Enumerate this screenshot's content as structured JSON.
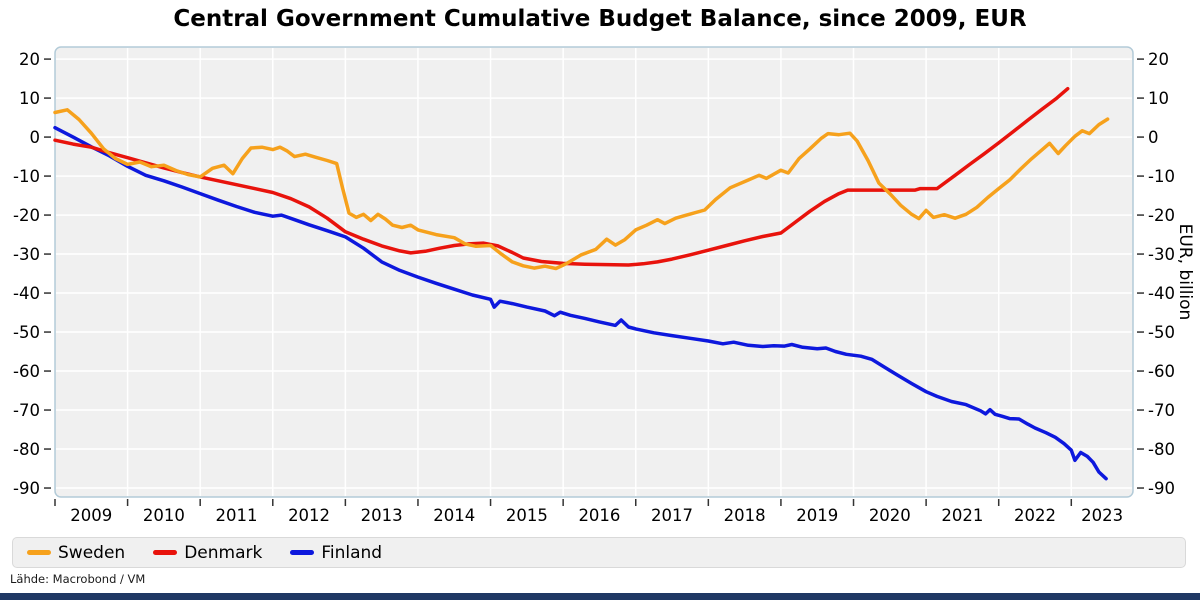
{
  "title": "Central Government Cumulative Budget Balance, since 2009, EUR",
  "source_note": "Lähde: Macrobond / VM",
  "colors": {
    "plot_bg": "#f0f0f0",
    "grid": "#ffffff",
    "frame": "#b3cbd8",
    "tick": "#333333",
    "text": "#000000",
    "legend_bg": "#f0f0f0",
    "legend_border": "#d9d9d9",
    "footer_bar": "#1f3864",
    "sweden": "#f6a11c",
    "denmark": "#e8130c",
    "finland": "#0d18dd"
  },
  "legend": {
    "items": [
      {
        "label": "Sweden",
        "color": "#f6a11c"
      },
      {
        "label": "Denmark",
        "color": "#e8130c"
      },
      {
        "label": "Finland",
        "color": "#0d18dd"
      }
    ]
  },
  "chart_data": {
    "type": "line",
    "title": "Central Government Cumulative Budget Balance, since 2009, EUR",
    "xlabel": "",
    "ylabel_right": "EUR, billion",
    "grid": true,
    "legend_position": "bottom",
    "x_range": [
      2009.0,
      2023.85
    ],
    "y_range": [
      -92.3,
      23.1
    ],
    "y_ticks": [
      20,
      10,
      0,
      -10,
      -20,
      -30,
      -40,
      -50,
      -60,
      -70,
      -80,
      -90
    ],
    "x_ticks": [
      2009,
      2010,
      2011,
      2012,
      2013,
      2014,
      2015,
      2016,
      2017,
      2018,
      2019,
      2020,
      2021,
      2022,
      2023
    ],
    "x_tick_labels": [
      "2009",
      "2010",
      "2011",
      "2012",
      "2013",
      "2014",
      "2015",
      "2016",
      "2017",
      "2018",
      "2019",
      "2020",
      "2021",
      "2022",
      "2023"
    ],
    "series": [
      {
        "name": "Sweden",
        "color": "#f6a11c",
        "points": [
          [
            2009.0,
            6.3
          ],
          [
            2009.17,
            7.0
          ],
          [
            2009.33,
            4.5
          ],
          [
            2009.5,
            1.0
          ],
          [
            2009.67,
            -3.0
          ],
          [
            2009.83,
            -5.5
          ],
          [
            2010.0,
            -7.0
          ],
          [
            2010.17,
            -6.4
          ],
          [
            2010.33,
            -7.6
          ],
          [
            2010.5,
            -7.2
          ],
          [
            2010.67,
            -8.6
          ],
          [
            2010.83,
            -9.6
          ],
          [
            2011.0,
            -10.2
          ],
          [
            2011.17,
            -8.0
          ],
          [
            2011.33,
            -7.2
          ],
          [
            2011.45,
            -9.4
          ],
          [
            2011.58,
            -5.5
          ],
          [
            2011.7,
            -2.8
          ],
          [
            2011.85,
            -2.6
          ],
          [
            2012.0,
            -3.2
          ],
          [
            2012.1,
            -2.6
          ],
          [
            2012.2,
            -3.6
          ],
          [
            2012.3,
            -5.0
          ],
          [
            2012.45,
            -4.4
          ],
          [
            2012.6,
            -5.2
          ],
          [
            2012.75,
            -6.0
          ],
          [
            2012.88,
            -6.8
          ],
          [
            2012.96,
            -13.0
          ],
          [
            2013.05,
            -19.5
          ],
          [
            2013.15,
            -20.6
          ],
          [
            2013.25,
            -19.8
          ],
          [
            2013.35,
            -21.4
          ],
          [
            2013.45,
            -19.8
          ],
          [
            2013.55,
            -21.0
          ],
          [
            2013.65,
            -22.6
          ],
          [
            2013.78,
            -23.2
          ],
          [
            2013.9,
            -22.6
          ],
          [
            2014.0,
            -23.8
          ],
          [
            2014.25,
            -25.0
          ],
          [
            2014.5,
            -25.8
          ],
          [
            2014.65,
            -27.4
          ],
          [
            2014.8,
            -28.0
          ],
          [
            2015.0,
            -27.8
          ],
          [
            2015.15,
            -30.0
          ],
          [
            2015.3,
            -32.0
          ],
          [
            2015.45,
            -33.0
          ],
          [
            2015.6,
            -33.6
          ],
          [
            2015.75,
            -33.1
          ],
          [
            2015.9,
            -33.7
          ],
          [
            2016.05,
            -32.4
          ],
          [
            2016.25,
            -30.2
          ],
          [
            2016.45,
            -28.8
          ],
          [
            2016.6,
            -26.2
          ],
          [
            2016.72,
            -27.7
          ],
          [
            2016.85,
            -26.3
          ],
          [
            2017.0,
            -23.8
          ],
          [
            2017.15,
            -22.6
          ],
          [
            2017.3,
            -21.2
          ],
          [
            2017.4,
            -22.2
          ],
          [
            2017.55,
            -20.8
          ],
          [
            2017.7,
            -20.0
          ],
          [
            2017.95,
            -18.7
          ],
          [
            2018.1,
            -16.0
          ],
          [
            2018.3,
            -13.0
          ],
          [
            2018.55,
            -11.0
          ],
          [
            2018.7,
            -9.8
          ],
          [
            2018.8,
            -10.6
          ],
          [
            2019.0,
            -8.5
          ],
          [
            2019.1,
            -9.2
          ],
          [
            2019.25,
            -5.5
          ],
          [
            2019.4,
            -3.0
          ],
          [
            2019.55,
            -0.4
          ],
          [
            2019.65,
            0.9
          ],
          [
            2019.8,
            0.6
          ],
          [
            2019.95,
            1.0
          ],
          [
            2020.05,
            -1.0
          ],
          [
            2020.2,
            -6.0
          ],
          [
            2020.35,
            -11.8
          ],
          [
            2020.5,
            -14.5
          ],
          [
            2020.65,
            -17.5
          ],
          [
            2020.8,
            -19.8
          ],
          [
            2020.9,
            -20.9
          ],
          [
            2021.0,
            -18.8
          ],
          [
            2021.1,
            -20.6
          ],
          [
            2021.25,
            -19.9
          ],
          [
            2021.4,
            -20.8
          ],
          [
            2021.55,
            -19.8
          ],
          [
            2021.7,
            -18.0
          ],
          [
            2021.85,
            -15.5
          ],
          [
            2022.0,
            -13.2
          ],
          [
            2022.15,
            -11.0
          ],
          [
            2022.3,
            -8.2
          ],
          [
            2022.45,
            -5.6
          ],
          [
            2022.6,
            -3.2
          ],
          [
            2022.7,
            -1.6
          ],
          [
            2022.82,
            -4.2
          ],
          [
            2022.92,
            -2.2
          ],
          [
            2023.05,
            0.2
          ],
          [
            2023.15,
            1.6
          ],
          [
            2023.25,
            0.9
          ],
          [
            2023.38,
            3.2
          ],
          [
            2023.5,
            4.6
          ]
        ]
      },
      {
        "name": "Denmark",
        "color": "#e8130c",
        "points": [
          [
            2009.0,
            -0.8
          ],
          [
            2009.25,
            -1.8
          ],
          [
            2009.5,
            -2.6
          ],
          [
            2009.75,
            -4.0
          ],
          [
            2010.0,
            -5.3
          ],
          [
            2010.25,
            -6.6
          ],
          [
            2010.5,
            -7.9
          ],
          [
            2010.75,
            -9.1
          ],
          [
            2011.0,
            -10.2
          ],
          [
            2011.25,
            -11.2
          ],
          [
            2011.5,
            -12.2
          ],
          [
            2011.75,
            -13.2
          ],
          [
            2012.0,
            -14.2
          ],
          [
            2012.25,
            -15.8
          ],
          [
            2012.5,
            -17.9
          ],
          [
            2012.75,
            -20.8
          ],
          [
            2013.0,
            -24.3
          ],
          [
            2013.25,
            -26.2
          ],
          [
            2013.5,
            -27.9
          ],
          [
            2013.75,
            -29.2
          ],
          [
            2013.9,
            -29.7
          ],
          [
            2014.1,
            -29.3
          ],
          [
            2014.3,
            -28.5
          ],
          [
            2014.5,
            -27.8
          ],
          [
            2014.7,
            -27.4
          ],
          [
            2014.9,
            -27.2
          ],
          [
            2015.1,
            -27.9
          ],
          [
            2015.3,
            -29.6
          ],
          [
            2015.45,
            -31.0
          ],
          [
            2015.7,
            -31.9
          ],
          [
            2016.0,
            -32.4
          ],
          [
            2016.3,
            -32.6
          ],
          [
            2016.6,
            -32.7
          ],
          [
            2016.9,
            -32.8
          ],
          [
            2017.1,
            -32.5
          ],
          [
            2017.3,
            -32.0
          ],
          [
            2017.5,
            -31.3
          ],
          [
            2017.75,
            -30.2
          ],
          [
            2018.0,
            -29.0
          ],
          [
            2018.25,
            -27.8
          ],
          [
            2018.5,
            -26.6
          ],
          [
            2018.75,
            -25.5
          ],
          [
            2019.0,
            -24.6
          ],
          [
            2019.2,
            -21.8
          ],
          [
            2019.4,
            -19.0
          ],
          [
            2019.6,
            -16.5
          ],
          [
            2019.8,
            -14.5
          ],
          [
            2019.92,
            -13.6
          ],
          [
            2020.2,
            -13.6
          ],
          [
            2020.5,
            -13.6
          ],
          [
            2020.85,
            -13.6
          ],
          [
            2020.92,
            -13.2
          ],
          [
            2021.15,
            -13.2
          ],
          [
            2021.4,
            -9.8
          ],
          [
            2021.6,
            -7.0
          ],
          [
            2021.8,
            -4.3
          ],
          [
            2022.0,
            -1.5
          ],
          [
            2022.2,
            1.4
          ],
          [
            2022.4,
            4.3
          ],
          [
            2022.6,
            7.2
          ],
          [
            2022.8,
            10.0
          ],
          [
            2022.95,
            12.4
          ]
        ]
      },
      {
        "name": "Finland",
        "color": "#0d18dd",
        "points": [
          [
            2009.0,
            2.4
          ],
          [
            2009.25,
            0.0
          ],
          [
            2009.5,
            -2.5
          ],
          [
            2009.75,
            -4.8
          ],
          [
            2010.0,
            -7.5
          ],
          [
            2010.25,
            -9.8
          ],
          [
            2010.5,
            -11.2
          ],
          [
            2010.75,
            -12.8
          ],
          [
            2011.0,
            -14.5
          ],
          [
            2011.25,
            -16.2
          ],
          [
            2011.5,
            -17.8
          ],
          [
            2011.75,
            -19.3
          ],
          [
            2012.0,
            -20.3
          ],
          [
            2012.12,
            -20.0
          ],
          [
            2012.3,
            -21.2
          ],
          [
            2012.5,
            -22.5
          ],
          [
            2012.75,
            -24.0
          ],
          [
            2013.0,
            -25.6
          ],
          [
            2013.25,
            -28.5
          ],
          [
            2013.5,
            -32.0
          ],
          [
            2013.75,
            -34.2
          ],
          [
            2014.0,
            -35.9
          ],
          [
            2014.25,
            -37.5
          ],
          [
            2014.5,
            -39.0
          ],
          [
            2014.75,
            -40.5
          ],
          [
            2015.0,
            -41.6
          ],
          [
            2015.05,
            -43.6
          ],
          [
            2015.13,
            -42.1
          ],
          [
            2015.3,
            -42.7
          ],
          [
            2015.5,
            -43.6
          ],
          [
            2015.75,
            -44.6
          ],
          [
            2015.88,
            -45.8
          ],
          [
            2015.96,
            -44.9
          ],
          [
            2016.1,
            -45.7
          ],
          [
            2016.3,
            -46.5
          ],
          [
            2016.5,
            -47.4
          ],
          [
            2016.72,
            -48.3
          ],
          [
            2016.8,
            -46.9
          ],
          [
            2016.9,
            -48.7
          ],
          [
            2017.0,
            -49.2
          ],
          [
            2017.25,
            -50.2
          ],
          [
            2017.5,
            -50.9
          ],
          [
            2017.75,
            -51.6
          ],
          [
            2018.0,
            -52.3
          ],
          [
            2018.2,
            -53.0
          ],
          [
            2018.35,
            -52.6
          ],
          [
            2018.55,
            -53.4
          ],
          [
            2018.75,
            -53.7
          ],
          [
            2018.9,
            -53.5
          ],
          [
            2019.05,
            -53.6
          ],
          [
            2019.15,
            -53.2
          ],
          [
            2019.3,
            -53.9
          ],
          [
            2019.5,
            -54.3
          ],
          [
            2019.62,
            -54.1
          ],
          [
            2019.75,
            -55.0
          ],
          [
            2019.9,
            -55.7
          ],
          [
            2020.1,
            -56.2
          ],
          [
            2020.25,
            -57.0
          ],
          [
            2020.4,
            -58.7
          ],
          [
            2020.6,
            -61.0
          ],
          [
            2020.8,
            -63.2
          ],
          [
            2021.0,
            -65.3
          ],
          [
            2021.15,
            -66.5
          ],
          [
            2021.35,
            -67.8
          ],
          [
            2021.55,
            -68.6
          ],
          [
            2021.75,
            -70.2
          ],
          [
            2021.82,
            -71.0
          ],
          [
            2021.88,
            -69.9
          ],
          [
            2021.95,
            -71.1
          ],
          [
            2022.05,
            -71.6
          ],
          [
            2022.15,
            -72.2
          ],
          [
            2022.28,
            -72.3
          ],
          [
            2022.4,
            -73.6
          ],
          [
            2022.5,
            -74.6
          ],
          [
            2022.65,
            -75.8
          ],
          [
            2022.78,
            -77.0
          ],
          [
            2022.9,
            -78.6
          ],
          [
            2023.0,
            -80.3
          ],
          [
            2023.05,
            -82.9
          ],
          [
            2023.13,
            -80.9
          ],
          [
            2023.22,
            -81.9
          ],
          [
            2023.3,
            -83.4
          ],
          [
            2023.38,
            -85.9
          ],
          [
            2023.48,
            -87.6
          ]
        ]
      }
    ]
  }
}
